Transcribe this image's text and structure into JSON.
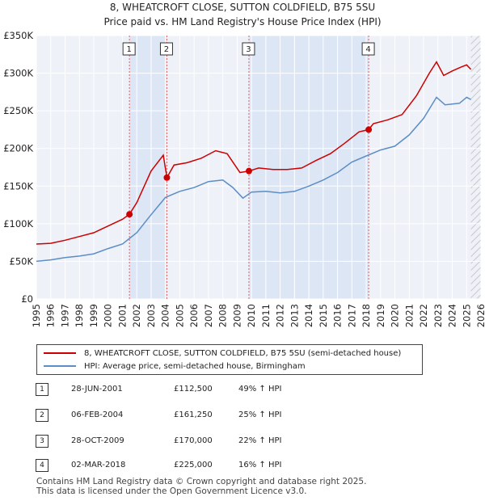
{
  "chart_data": {
    "type": "line",
    "title": "8, WHEATCROFT CLOSE, SUTTON COLDFIELD, B75 5SU",
    "subtitle": "Price paid vs. HM Land Registry's House Price Index (HPI)",
    "xlim": [
      1995,
      2026
    ],
    "ylim": [
      0,
      350000
    ],
    "x_ticks": [
      "1995",
      "1996",
      "1997",
      "1998",
      "1999",
      "2000",
      "2001",
      "2002",
      "2003",
      "2004",
      "2005",
      "2006",
      "2007",
      "2008",
      "2009",
      "2010",
      "2011",
      "2012",
      "2013",
      "2014",
      "2015",
      "2016",
      "2017",
      "2018",
      "2019",
      "2020",
      "2021",
      "2022",
      "2023",
      "2024",
      "2025",
      "2026"
    ],
    "y_ticks": [
      {
        "value": 0,
        "label": "£0"
      },
      {
        "value": 50000,
        "label": "£50K"
      },
      {
        "value": 100000,
        "label": "£100K"
      },
      {
        "value": 150000,
        "label": "£150K"
      },
      {
        "value": 200000,
        "label": "£200K"
      },
      {
        "value": 250000,
        "label": "£250K"
      },
      {
        "value": 300000,
        "label": "£300K"
      },
      {
        "value": 350000,
        "label": "£350K"
      }
    ],
    "grid": true,
    "series": [
      {
        "name": "8, WHEATCROFT CLOSE, SUTTON COLDFIELD, B75 5SU (semi-detached house)",
        "color": "#cc0000",
        "points": [
          [
            1995.0,
            73000
          ],
          [
            1996.0,
            74000
          ],
          [
            1997.0,
            78000
          ],
          [
            1998.0,
            83000
          ],
          [
            1999.0,
            88000
          ],
          [
            2000.0,
            97000
          ],
          [
            2001.0,
            106000
          ],
          [
            2001.49,
            112500
          ],
          [
            2002.0,
            128000
          ],
          [
            2003.0,
            170000
          ],
          [
            2003.85,
            191000
          ],
          [
            2004.1,
            161250
          ],
          [
            2004.6,
            178000
          ],
          [
            2005.5,
            181000
          ],
          [
            2006.5,
            187000
          ],
          [
            2007.5,
            197000
          ],
          [
            2008.3,
            193000
          ],
          [
            2009.2,
            168000
          ],
          [
            2009.82,
            170000
          ],
          [
            2010.5,
            174000
          ],
          [
            2011.5,
            172000
          ],
          [
            2012.5,
            172000
          ],
          [
            2013.5,
            174000
          ],
          [
            2014.5,
            184000
          ],
          [
            2015.5,
            193000
          ],
          [
            2016.5,
            207000
          ],
          [
            2017.5,
            222000
          ],
          [
            2018.17,
            225000
          ],
          [
            2018.5,
            233000
          ],
          [
            2019.5,
            238000
          ],
          [
            2020.5,
            245000
          ],
          [
            2021.5,
            270000
          ],
          [
            2022.4,
            300000
          ],
          [
            2022.9,
            315000
          ],
          [
            2023.4,
            297000
          ],
          [
            2024.0,
            303000
          ],
          [
            2024.6,
            308000
          ],
          [
            2025.0,
            311000
          ],
          [
            2025.3,
            305000
          ]
        ]
      },
      {
        "name": "HPI: Average price, semi-detached house, Birmingham",
        "color": "#5b8ec5",
        "points": [
          [
            1995.0,
            50000
          ],
          [
            1996.0,
            52000
          ],
          [
            1997.0,
            55000
          ],
          [
            1998.0,
            57000
          ],
          [
            1999.0,
            60000
          ],
          [
            2000.0,
            67000
          ],
          [
            2001.0,
            73000
          ],
          [
            2002.0,
            88000
          ],
          [
            2003.0,
            112000
          ],
          [
            2004.0,
            135000
          ],
          [
            2005.0,
            143000
          ],
          [
            2006.0,
            148000
          ],
          [
            2007.0,
            156000
          ],
          [
            2008.0,
            158000
          ],
          [
            2008.7,
            148000
          ],
          [
            2009.4,
            134000
          ],
          [
            2010.0,
            142000
          ],
          [
            2011.0,
            143000
          ],
          [
            2012.0,
            141000
          ],
          [
            2013.0,
            143000
          ],
          [
            2014.0,
            150000
          ],
          [
            2015.0,
            158000
          ],
          [
            2016.0,
            168000
          ],
          [
            2017.0,
            182000
          ],
          [
            2018.0,
            190000
          ],
          [
            2019.0,
            198000
          ],
          [
            2020.0,
            203000
          ],
          [
            2021.0,
            218000
          ],
          [
            2022.0,
            240000
          ],
          [
            2022.9,
            268000
          ],
          [
            2023.5,
            258000
          ],
          [
            2024.5,
            260000
          ],
          [
            2025.0,
            268000
          ],
          [
            2025.3,
            265000
          ]
        ]
      }
    ],
    "sales": [
      {
        "id": "1",
        "x": 2001.49,
        "y": 112500
      },
      {
        "id": "2",
        "x": 2004.1,
        "y": 161250
      },
      {
        "id": "3",
        "x": 2009.82,
        "y": 170000
      },
      {
        "id": "4",
        "x": 2018.17,
        "y": 225000
      }
    ],
    "shaded_ranges": [
      [
        2001.49,
        2004.1
      ],
      [
        2009.82,
        2018.17
      ]
    ],
    "forecast_start": 2025.3
  },
  "legend": {
    "property_label": "8, WHEATCROFT CLOSE, SUTTON COLDFIELD, B75 5SU (semi-detached house)",
    "hpi_label": "HPI: Average price, semi-detached house, Birmingham"
  },
  "transactions": [
    {
      "num": "1",
      "date": "28-JUN-2001",
      "price": "£112,500",
      "hpi": "49% ↑ HPI"
    },
    {
      "num": "2",
      "date": "06-FEB-2004",
      "price": "£161,250",
      "hpi": "25% ↑ HPI"
    },
    {
      "num": "3",
      "date": "28-OCT-2009",
      "price": "£170,000",
      "hpi": "22% ↑ HPI"
    },
    {
      "num": "4",
      "date": "02-MAR-2018",
      "price": "£225,000",
      "hpi": "16% ↑ HPI"
    }
  ],
  "footer": {
    "line1": "Contains HM Land Registry data © Crown copyright and database right 2025.",
    "line2": "This data is licensed under the Open Government Licence v3.0."
  }
}
